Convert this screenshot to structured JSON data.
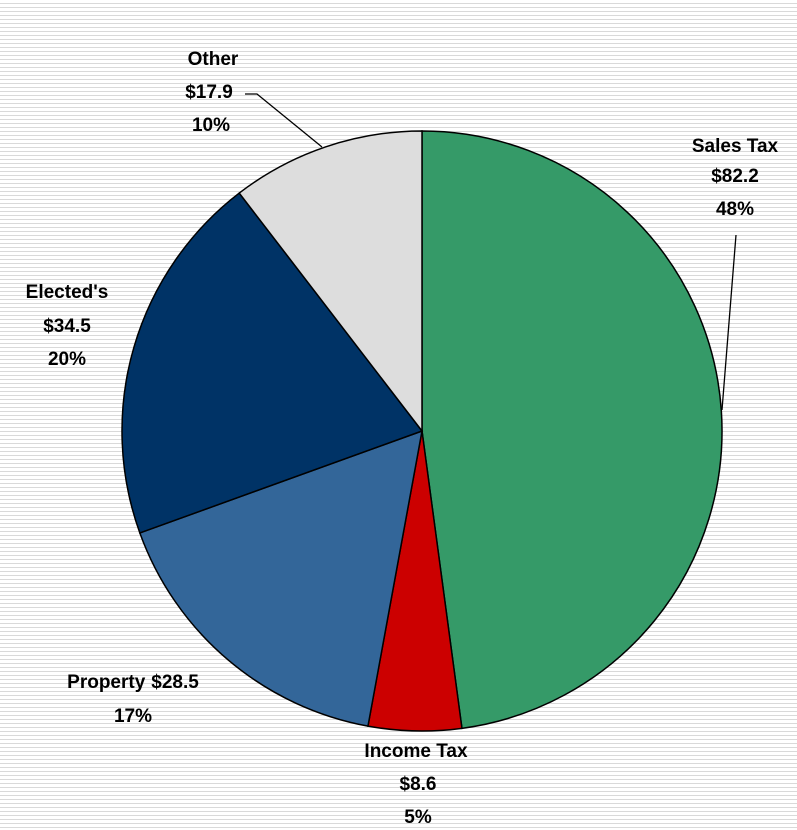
{
  "chart_data": {
    "type": "pie",
    "slices": [
      {
        "name": "Sales Tax",
        "value": 82.2,
        "value_label": "$82.2",
        "percent_label": "48%",
        "color": "#359a68"
      },
      {
        "name": "Income Tax",
        "value": 8.6,
        "value_label": "$8.6",
        "percent_label": "5%",
        "color": "#cc0000"
      },
      {
        "name": "Property",
        "value": 28.5,
        "value_label": "$28.5",
        "percent_label": "17%",
        "color": "#336699"
      },
      {
        "name": "Elected's",
        "value": 34.5,
        "value_label": "$34.5",
        "percent_label": "20%",
        "color": "#003366"
      },
      {
        "name": "Other",
        "value": 17.9,
        "value_label": "$17.9",
        "percent_label": "10%",
        "color": "#dddddd"
      }
    ],
    "start_angle": "12 o'clock",
    "direction": "clockwise",
    "legend": "none"
  }
}
